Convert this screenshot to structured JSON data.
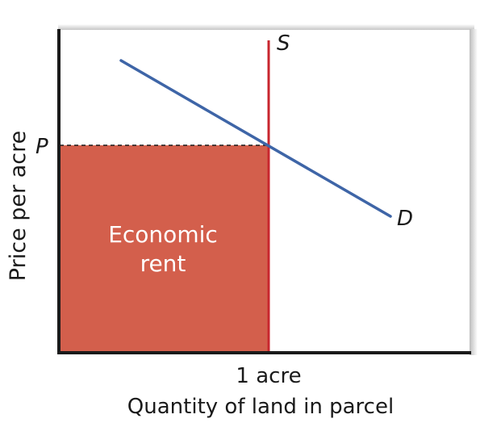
{
  "diagram": {
    "axes": {
      "ylabel": "Price per acre",
      "xlabel": "Quantity of land in parcel",
      "x_tick": "1 acre",
      "y_tick": "P"
    },
    "curves": {
      "supply_label": "S",
      "demand_label": "D"
    },
    "area": {
      "label_line1": "Economic",
      "label_line2": "rent"
    },
    "colors": {
      "supply": "#c8262e",
      "demand": "#3e65a7",
      "rent_area": "#d35f4c",
      "axis": "#1a1a1a",
      "panel_shadow": "#cfcfcf"
    }
  }
}
